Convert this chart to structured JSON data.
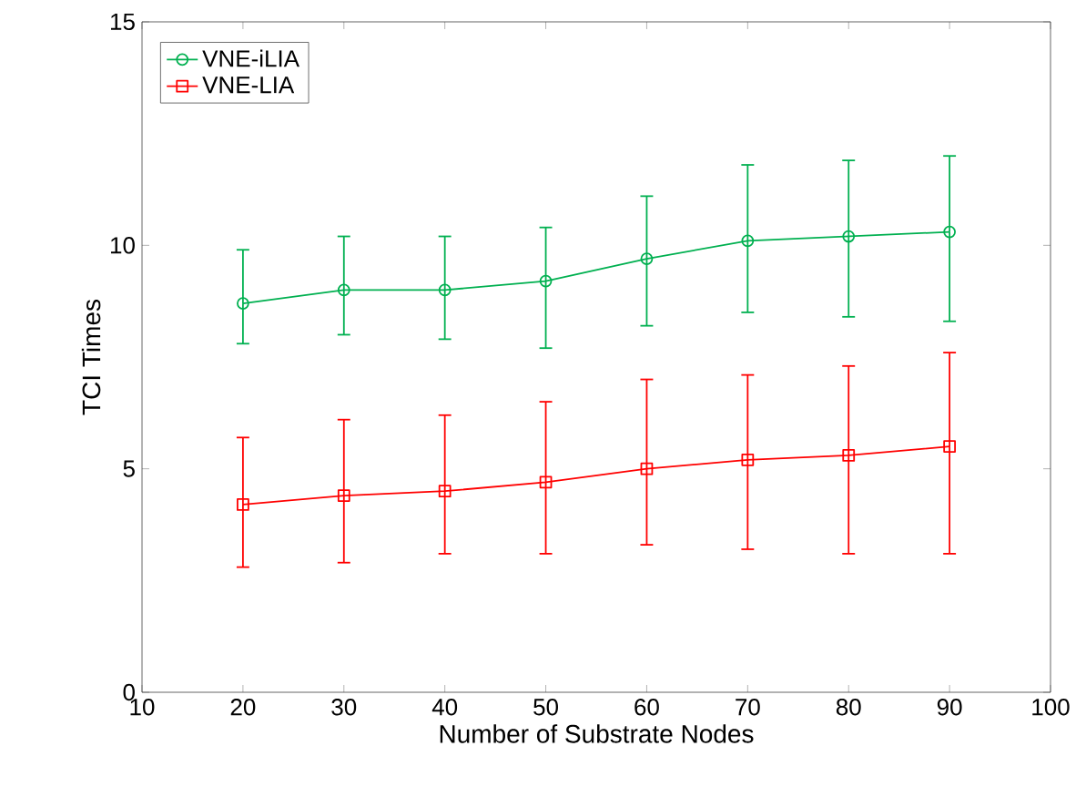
{
  "chart_data": {
    "type": "line",
    "xlabel": "Number of Substrate Nodes",
    "ylabel": "TCI Times",
    "x": [
      20,
      30,
      40,
      50,
      60,
      70,
      80,
      90
    ],
    "xlim": [
      10,
      100
    ],
    "xticks": [
      10,
      20,
      30,
      40,
      50,
      60,
      70,
      80,
      90,
      100
    ],
    "ylim": [
      0,
      15
    ],
    "yticks": [
      0,
      5,
      10,
      15
    ],
    "grid": false,
    "legend": "top left",
    "line_style": "solid",
    "series": [
      {
        "name": "VNE-iLIA",
        "color": "#00b050",
        "marker": "circle",
        "values": [
          8.7,
          9.0,
          9.0,
          9.2,
          9.7,
          10.1,
          10.2,
          10.3
        ],
        "errors": [
          [
            7.8,
            9.9
          ],
          [
            8.0,
            10.2
          ],
          [
            7.9,
            10.2
          ],
          [
            7.7,
            10.4
          ],
          [
            8.2,
            11.1
          ],
          [
            8.5,
            11.8
          ],
          [
            8.4,
            11.9
          ],
          [
            8.3,
            12.0
          ]
        ]
      },
      {
        "name": "VNE-LIA",
        "color": "#ff0000",
        "marker": "square",
        "values": [
          4.2,
          4.4,
          4.5,
          4.7,
          5.0,
          5.2,
          5.3,
          5.5
        ],
        "errors": [
          [
            2.8,
            5.7
          ],
          [
            2.9,
            6.1
          ],
          [
            3.1,
            6.2
          ],
          [
            3.1,
            6.5
          ],
          [
            3.3,
            7.0
          ],
          [
            3.2,
            7.1
          ],
          [
            3.1,
            7.3
          ],
          [
            3.1,
            7.6
          ]
        ]
      }
    ]
  }
}
